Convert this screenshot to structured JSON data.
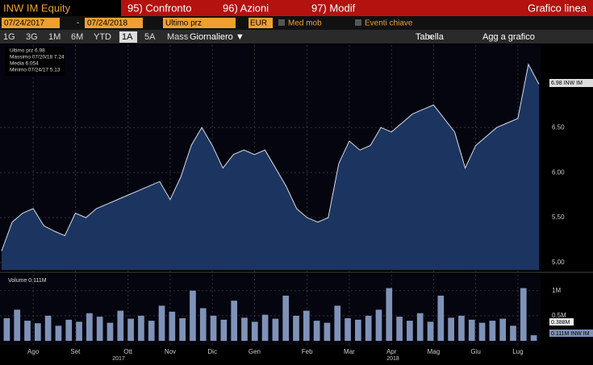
{
  "toolbar": {
    "ticker": "INW IM Equity",
    "start_date": "07/24/2017",
    "dash": "-",
    "end_date": "07/24/2018",
    "field": "Ultimo prz",
    "currency": "EUR",
    "moving_avg": "Med mob",
    "key_events": "Eventi chiave",
    "compare": "95) Confronto",
    "actions": "96) Azioni",
    "edit": "97) Modif",
    "chart_kind": "Grafico linea"
  },
  "periods": [
    "1G",
    "3G",
    "1M",
    "6M",
    "YTD",
    "1A",
    "5A",
    "Mass"
  ],
  "tools": {
    "frequency": "Giornaliero ▼",
    "table": "Tabella",
    "collapse": "«",
    "add": "Agg a grafico"
  },
  "chart_data": [
    {
      "type": "area",
      "legend": [
        "Ultimo prz 6.98",
        "Massimo 07/20/18 7.24",
        "Media 6.054",
        "Minimo 07/24/17 5.13"
      ],
      "last_label": "6.98 INW IM",
      "year_labels": [
        "2017",
        "2018"
      ],
      "categories": [
        null,
        null,
        null,
        "Ago",
        null,
        null,
        null,
        "Set",
        null,
        null,
        null,
        null,
        "Ott",
        null,
        null,
        null,
        "Nov",
        null,
        null,
        null,
        "Dic",
        null,
        null,
        null,
        "Gen",
        null,
        null,
        null,
        null,
        "Feb",
        null,
        null,
        null,
        "Mar",
        null,
        null,
        null,
        "Apr",
        null,
        null,
        null,
        "Mag",
        null,
        null,
        null,
        "Giu",
        null,
        null,
        null,
        "Lug",
        null,
        null
      ],
      "series": [
        {
          "name": "Ultimo prz",
          "color": "#d8dce8",
          "values": [
            5.13,
            5.45,
            5.55,
            5.6,
            5.41,
            5.35,
            5.3,
            5.55,
            5.5,
            5.6,
            5.65,
            5.7,
            5.75,
            5.8,
            5.85,
            5.9,
            5.7,
            5.95,
            6.3,
            6.5,
            6.3,
            6.05,
            6.2,
            6.25,
            6.2,
            6.25,
            6.05,
            5.85,
            5.6,
            5.5,
            5.45,
            5.5,
            6.1,
            6.35,
            6.25,
            6.3,
            6.5,
            6.45,
            6.55,
            6.65,
            6.7,
            6.75,
            6.6,
            6.45,
            6.05,
            6.3,
            6.4,
            6.5,
            6.55,
            6.6,
            7.2,
            6.98
          ]
        }
      ],
      "ylim": [
        4.92,
        7.36
      ],
      "yticks": [
        {
          "value": 5,
          "label": "5.00"
        },
        {
          "value": 5.5,
          "label": "5.50"
        },
        {
          "value": 6,
          "label": "6.00"
        },
        {
          "value": 6.5,
          "label": "6.50"
        }
      ]
    },
    {
      "type": "bar",
      "legend": "Volume 0.111M",
      "sma_label": "0.388M",
      "last_label": "0.111M INW IM",
      "series": [
        {
          "name": "Volume",
          "color": "#7f93b8",
          "values": [
            0.45,
            0.62,
            0.4,
            0.35,
            0.5,
            0.3,
            0.42,
            0.38,
            0.55,
            0.48,
            0.36,
            0.6,
            0.44,
            0.5,
            0.4,
            0.7,
            0.58,
            0.45,
            1.0,
            0.65,
            0.5,
            0.42,
            0.8,
            0.46,
            0.38,
            0.52,
            0.44,
            0.9,
            0.5,
            0.6,
            0.4,
            0.36,
            0.7,
            0.45,
            0.42,
            0.5,
            0.62,
            1.05,
            0.48,
            0.4,
            0.55,
            0.38,
            0.9,
            0.46,
            0.5,
            0.42,
            0.36,
            0.4,
            0.44,
            0.3,
            1.05,
            0.111
          ]
        }
      ],
      "ylim": [
        0,
        1.3
      ],
      "yticks": [
        {
          "value": 0.5,
          "label": "0.5M"
        },
        {
          "value": 1,
          "label": "1M"
        }
      ]
    }
  ]
}
